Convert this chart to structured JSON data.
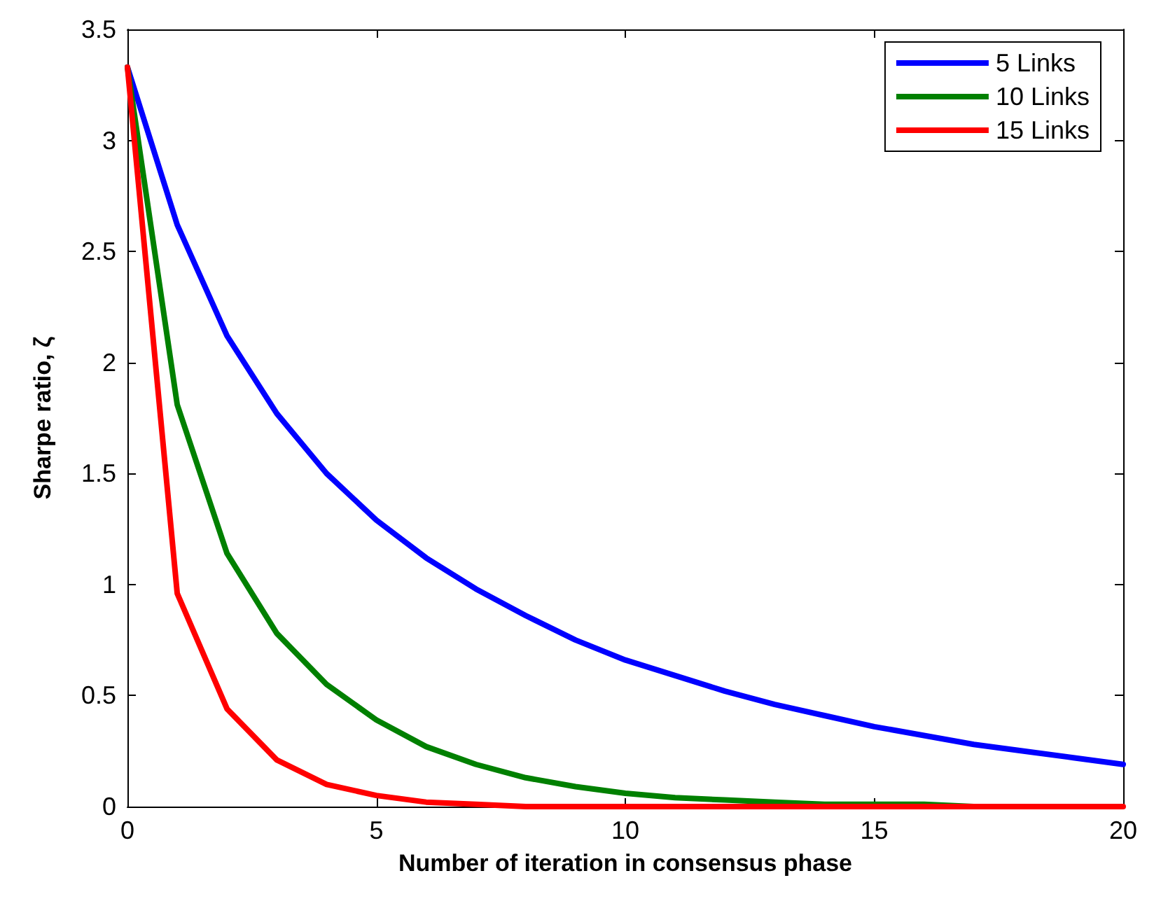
{
  "chart_data": {
    "type": "line",
    "xlabel": "Number of iteration in consensus phase",
    "ylabel": "Sharpe ratio, ζ",
    "x": [
      0,
      1,
      2,
      3,
      4,
      5,
      6,
      7,
      8,
      9,
      10,
      11,
      12,
      13,
      14,
      15,
      16,
      17,
      18,
      19,
      20
    ],
    "series": [
      {
        "name": "5 Links",
        "color": "#0000ff",
        "values": [
          3.33,
          2.62,
          2.12,
          1.77,
          1.5,
          1.29,
          1.12,
          0.98,
          0.86,
          0.75,
          0.66,
          0.59,
          0.52,
          0.46,
          0.41,
          0.36,
          0.32,
          0.28,
          0.25,
          0.22,
          0.19
        ]
      },
      {
        "name": "10 Links",
        "color": "#008000",
        "values": [
          3.33,
          1.81,
          1.14,
          0.78,
          0.55,
          0.39,
          0.27,
          0.19,
          0.13,
          0.09,
          0.06,
          0.04,
          0.03,
          0.02,
          0.01,
          0.01,
          0.01,
          0,
          0,
          null,
          null
        ]
      },
      {
        "name": "15 Links",
        "color": "#ff0000",
        "values": [
          3.33,
          0.96,
          0.44,
          0.21,
          0.1,
          0.05,
          0.02,
          0.01,
          0,
          0,
          0,
          0,
          0,
          0,
          0,
          0,
          0,
          0,
          0,
          0,
          0
        ]
      }
    ],
    "xlim": [
      0,
      20
    ],
    "xticks": [
      0,
      5,
      10,
      15,
      20
    ],
    "ylim": [
      0,
      3.5
    ],
    "yticks": [
      0,
      0.5,
      1,
      1.5,
      2,
      2.5,
      3,
      3.5
    ],
    "grid": false,
    "legend": "top right",
    "marker": "none",
    "line_style": "solid"
  }
}
